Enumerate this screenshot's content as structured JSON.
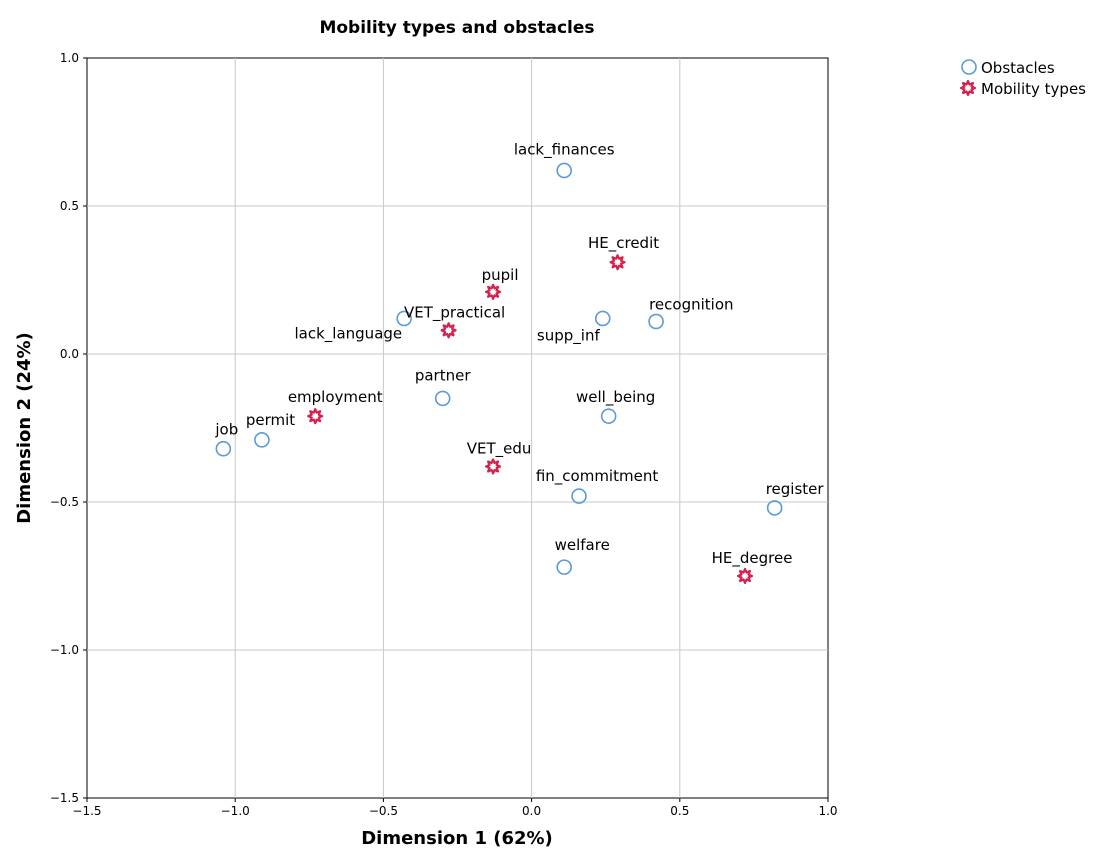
{
  "chart_data": {
    "type": "scatter",
    "title": "Mobility types and obstacles",
    "xlabel": "Dimension 1 (62%)",
    "ylabel": "Dimension 2 (24%)",
    "xlim": [
      -1.5,
      1.0
    ],
    "ylim": [
      -1.5,
      1.0
    ],
    "xticks": [
      {
        "value": -1.5,
        "label": "−1.5"
      },
      {
        "value": -1.0,
        "label": "−1.0"
      },
      {
        "value": -0.5,
        "label": "−0.5"
      },
      {
        "value": 0.0,
        "label": "0.0"
      },
      {
        "value": 0.5,
        "label": "0.5"
      },
      {
        "value": 1.0,
        "label": "1.0"
      }
    ],
    "yticks": [
      {
        "value": -1.5,
        "label": "−1.5"
      },
      {
        "value": -1.0,
        "label": "−1.0"
      },
      {
        "value": -0.5,
        "label": "−0.5"
      },
      {
        "value": 0.0,
        "label": "0.0"
      },
      {
        "value": 0.5,
        "label": "0.5"
      },
      {
        "value": 1.0,
        "label": "1.0"
      }
    ],
    "grid": true,
    "legend_position": "top-right",
    "series": [
      {
        "name": "Obstacles",
        "marker": "circle",
        "color": "#5b9bd5",
        "points": [
          {
            "label": "lack_finances",
            "x": 0.11,
            "y": 0.62
          },
          {
            "label": "recognition",
            "x": 0.42,
            "y": 0.11
          },
          {
            "label": "supp_inf",
            "x": 0.24,
            "y": 0.12
          },
          {
            "label": "lack_language",
            "x": -0.43,
            "y": 0.12
          },
          {
            "label": "partner",
            "x": -0.3,
            "y": -0.15
          },
          {
            "label": "well_being",
            "x": 0.26,
            "y": -0.21
          },
          {
            "label": "permit",
            "x": -0.91,
            "y": -0.29
          },
          {
            "label": "job",
            "x": -1.04,
            "y": -0.32
          },
          {
            "label": "fin_commitment",
            "x": 0.16,
            "y": -0.48
          },
          {
            "label": "register",
            "x": 0.82,
            "y": -0.52
          },
          {
            "label": "welfare",
            "x": 0.11,
            "y": -0.72
          }
        ]
      },
      {
        "name": "Mobility types",
        "marker": "star",
        "color": "#d6204e",
        "points": [
          {
            "label": "HE_credit",
            "x": 0.29,
            "y": 0.31
          },
          {
            "label": "pupil",
            "x": -0.13,
            "y": 0.21
          },
          {
            "label": "VET_practical",
            "x": -0.28,
            "y": 0.08
          },
          {
            "label": "employment",
            "x": -0.73,
            "y": -0.21
          },
          {
            "label": "VET_edu",
            "x": -0.13,
            "y": -0.38
          },
          {
            "label": "HE_degree",
            "x": 0.72,
            "y": -0.75
          }
        ]
      }
    ]
  }
}
